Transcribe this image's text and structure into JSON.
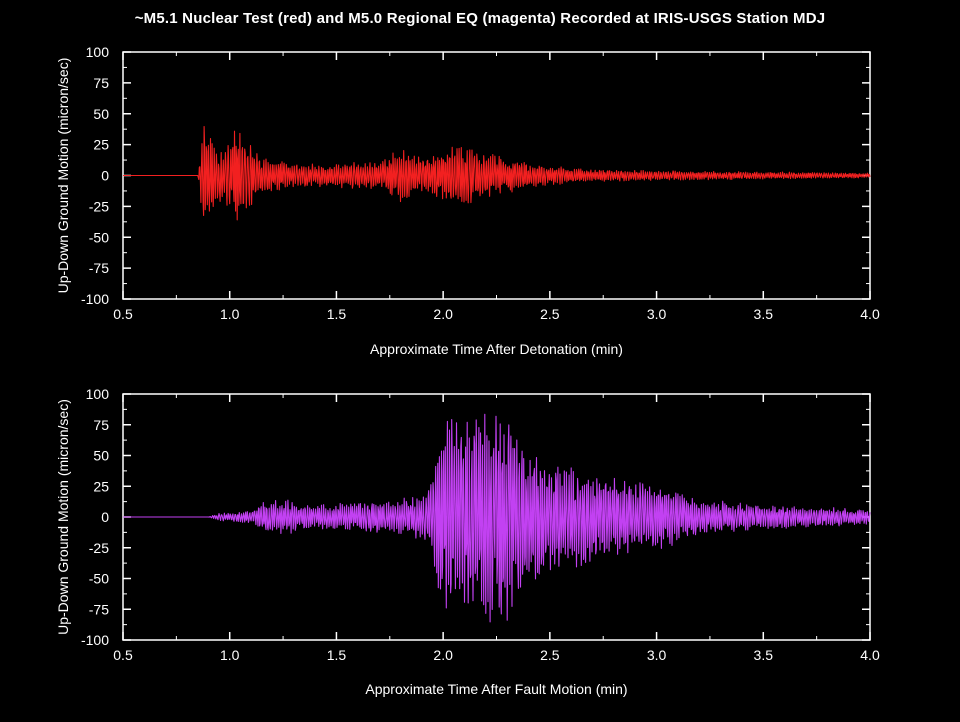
{
  "title": "~M5.1 Nuclear Test (red) and M5.0 Regional EQ (magenta) Recorded at IRIS-USGS Station MDJ",
  "colors": {
    "background": "#000000",
    "axis": "#ffffff",
    "nuclear": "#ff2222",
    "earthquake": "#cc44ff"
  },
  "chart_data": [
    {
      "type": "line",
      "xlabel": "Approximate Time After Detonation (min)",
      "ylabel": "Up-Down Ground Motion (micron/sec)",
      "xlim": [
        0.5,
        4.0
      ],
      "ylim": [
        -100,
        100
      ],
      "xticks": [
        "0.5",
        "1.0",
        "1.5",
        "2.0",
        "2.5",
        "3.0",
        "3.5",
        "4.0"
      ],
      "yticks": [
        "100",
        "75",
        "50",
        "25",
        "0",
        "-25",
        "-50",
        "-75",
        "-100"
      ],
      "series": [
        {
          "color": "#ff2222",
          "envelope": [
            [
              0.5,
              0
            ],
            [
              0.85,
              0
            ],
            [
              0.88,
              50
            ],
            [
              0.92,
              30
            ],
            [
              0.97,
              20
            ],
            [
              1.03,
              45
            ],
            [
              1.07,
              30
            ],
            [
              1.15,
              15
            ],
            [
              1.3,
              10
            ],
            [
              1.5,
              10
            ],
            [
              1.7,
              12
            ],
            [
              1.8,
              22
            ],
            [
              1.9,
              15
            ],
            [
              2.0,
              20
            ],
            [
              2.08,
              30
            ],
            [
              2.15,
              22
            ],
            [
              2.3,
              15
            ],
            [
              2.4,
              10
            ],
            [
              2.5,
              8
            ],
            [
              2.7,
              5
            ],
            [
              3.0,
              4
            ],
            [
              3.5,
              3
            ],
            [
              4.0,
              2
            ]
          ]
        }
      ]
    },
    {
      "type": "line",
      "xlabel": "Approximate Time After Fault Motion (min)",
      "ylabel": "Up-Down Ground Motion (micron/sec)",
      "xlim": [
        0.5,
        4.0
      ],
      "ylim": [
        -100,
        100
      ],
      "xticks": [
        "0.5",
        "1.0",
        "1.5",
        "2.0",
        "2.5",
        "3.0",
        "3.5",
        "4.0"
      ],
      "yticks": [
        "100",
        "75",
        "50",
        "25",
        "0",
        "-25",
        "-50",
        "-75",
        "-100"
      ],
      "series": [
        {
          "color": "#cc44ff",
          "envelope": [
            [
              0.5,
              0
            ],
            [
              0.9,
              0
            ],
            [
              0.95,
              3
            ],
            [
              1.1,
              5
            ],
            [
              1.15,
              12
            ],
            [
              1.25,
              15
            ],
            [
              1.4,
              10
            ],
            [
              1.6,
              12
            ],
            [
              1.8,
              15
            ],
            [
              1.92,
              20
            ],
            [
              1.98,
              70
            ],
            [
              2.05,
              95
            ],
            [
              2.15,
              80
            ],
            [
              2.28,
              95
            ],
            [
              2.4,
              55
            ],
            [
              2.5,
              45
            ],
            [
              2.7,
              40
            ],
            [
              2.9,
              28
            ],
            [
              3.0,
              30
            ],
            [
              3.2,
              15
            ],
            [
              3.5,
              10
            ],
            [
              3.8,
              8
            ],
            [
              4.0,
              6
            ]
          ]
        }
      ]
    }
  ]
}
